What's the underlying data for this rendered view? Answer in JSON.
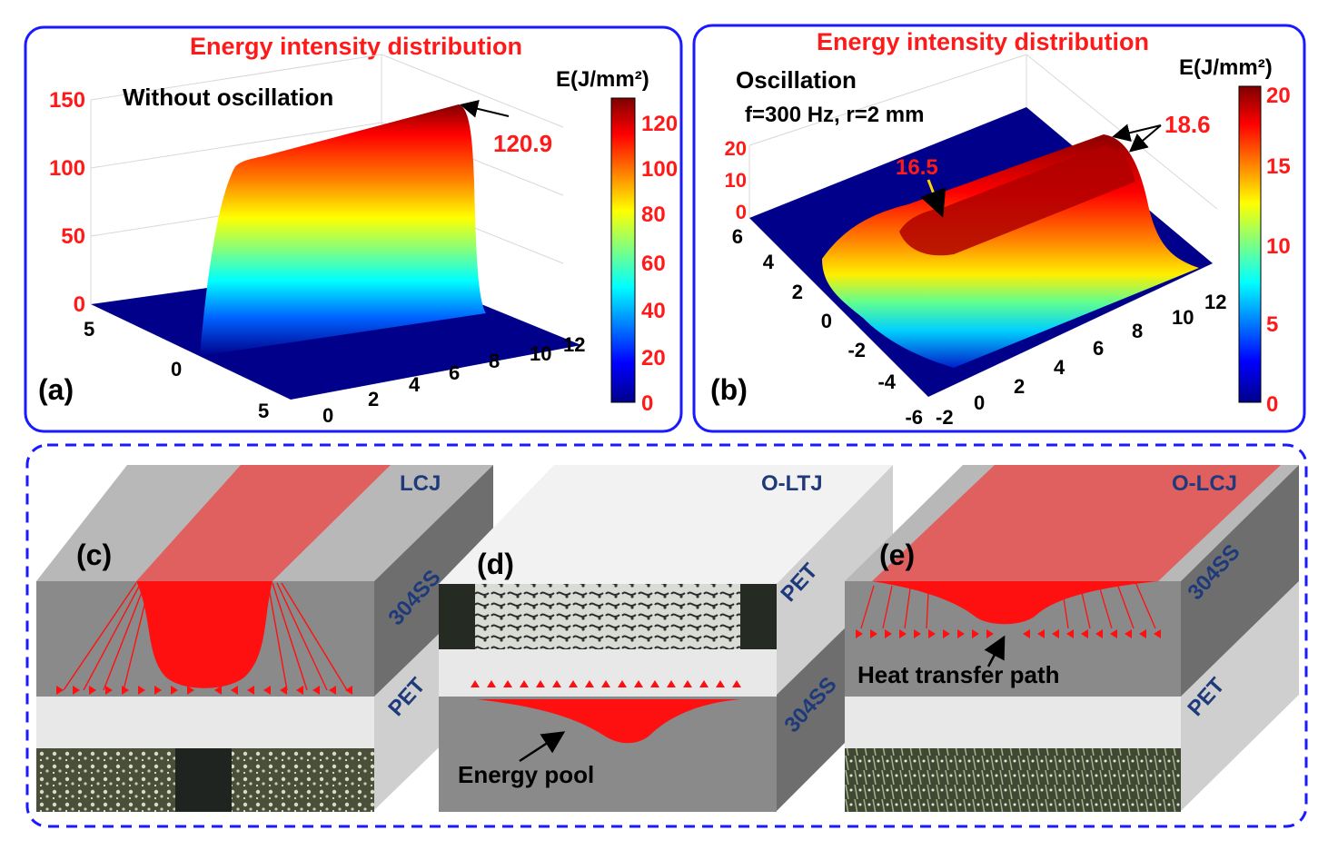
{
  "panel_a": {
    "title": "Energy intensity distribution",
    "condition": "Without oscillation",
    "label": "(a)",
    "peak_label": "120.9",
    "z_ticks": [
      "150",
      "100",
      "50",
      "0"
    ],
    "y_ticks": [
      "5",
      "0",
      "5"
    ],
    "x_ticks": [
      "0",
      "2",
      "4",
      "6",
      "8",
      "10",
      "12"
    ],
    "colorbar_title": "E(J/mm²)",
    "colorbar_ticks": [
      "120",
      "100",
      "80",
      "60",
      "40",
      "20",
      "0"
    ]
  },
  "panel_b": {
    "title": "Energy intensity distribution",
    "condition_line1": "Oscillation",
    "condition_line2": "f=300 Hz, r=2 mm",
    "label": "(b)",
    "peak_label": "18.6",
    "inner_label": "16.5",
    "z_ticks": [
      "20",
      "10",
      "0"
    ],
    "y_ticks": [
      "6",
      "4",
      "2",
      "0",
      "-2",
      "-4",
      "-6"
    ],
    "x_ticks": [
      "-2",
      "0",
      "2",
      "4",
      "6",
      "8",
      "10",
      "12"
    ],
    "colorbar_title": "E(J/mm²)",
    "colorbar_ticks": [
      "20",
      "15",
      "10",
      "5",
      "0"
    ]
  },
  "panel_c": {
    "label": "(c)",
    "joint": "LCJ",
    "top_material": "304SS",
    "bottom_material": "PET"
  },
  "panel_d": {
    "label": "(d)",
    "joint": "O-LTJ",
    "top_material": "PET",
    "bottom_material": "304SS",
    "annotation": "Energy pool"
  },
  "panel_e": {
    "label": "(e)",
    "joint": "O-LCJ",
    "top_material": "304SS",
    "bottom_material": "PET",
    "annotation": "Heat transfer path"
  },
  "colors": {
    "panel_border": "#1a1aff",
    "title_red": "#ff1a1a",
    "tick_red": "#ff1a1a",
    "navy_text": "#1f3a7a",
    "plot_floor": "#00008b",
    "steel_front": "#8a8a8a",
    "steel_top": "#b8b8b8",
    "steel_side": "#6e6e6e",
    "pet_front": "#e8e8e8",
    "pet_side": "#cfcfcf",
    "heat_red": "#ff1010",
    "heat_band": "#e06060"
  }
}
